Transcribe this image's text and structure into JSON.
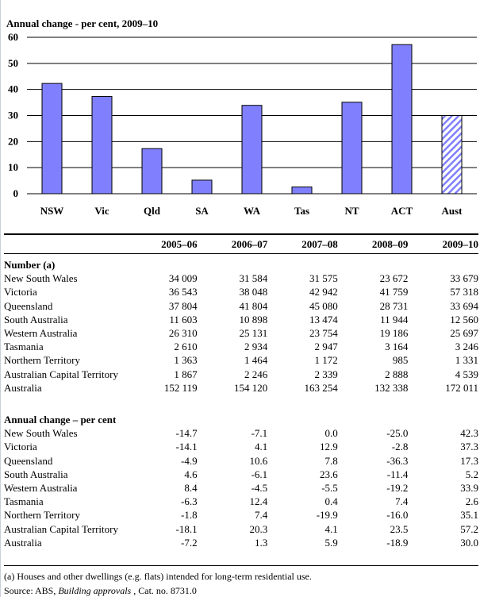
{
  "chart_data": {
    "type": "bar",
    "title": "Annual change - per cent, 2009–10",
    "categories": [
      "NSW",
      "Vic",
      "Qld",
      "SA",
      "WA",
      "Tas",
      "NT",
      "ACT",
      "Aust"
    ],
    "values": [
      42.3,
      37.3,
      17.3,
      5.2,
      33.9,
      2.6,
      35.1,
      57.2,
      30.0
    ],
    "ylim": [
      0,
      60
    ],
    "yticks": [
      "0",
      "10",
      "20",
      "30",
      "40",
      "50",
      "60"
    ],
    "grid": true,
    "colors": {
      "bar": "#8080ff",
      "highlight_pattern": "hatched",
      "outline": "#000000"
    },
    "highlighted": "Aust"
  },
  "table": {
    "columns": [
      "2005–06",
      "2006–07",
      "2007–08",
      "2008–09",
      "2009–10"
    ],
    "sections": [
      {
        "title": "Number (a)",
        "rows": [
          {
            "label": "New South Wales",
            "values": [
              "34 009",
              "31 584",
              "31 575",
              "23 672",
              "33 679"
            ]
          },
          {
            "label": "Victoria",
            "values": [
              "36 543",
              "38 048",
              "42 942",
              "41 759",
              "57 318"
            ]
          },
          {
            "label": "Queensland",
            "values": [
              "37 804",
              "41 804",
              "45 080",
              "28 731",
              "33 694"
            ]
          },
          {
            "label": "South Australia",
            "values": [
              "11 603",
              "10 898",
              "13 474",
              "11 944",
              "12 560"
            ]
          },
          {
            "label": "Western Australia",
            "values": [
              "26 310",
              "25 131",
              "23 754",
              "19 186",
              "25 697"
            ]
          },
          {
            "label": "Tasmania",
            "values": [
              "2 610",
              "2 934",
              "2 947",
              "3 164",
              "3 246"
            ]
          },
          {
            "label": "Northern Territory",
            "values": [
              "1 363",
              "1 464",
              "1 172",
              "985",
              "1 331"
            ]
          },
          {
            "label": "Australian Capital Territory",
            "values": [
              "1 867",
              "2 246",
              "2 339",
              "2 888",
              "4 539"
            ]
          },
          {
            "label": "Australia",
            "values": [
              "152 119",
              "154 120",
              "163 254",
              "132 338",
              "172 011"
            ]
          }
        ]
      },
      {
        "title": "Annual change – per cent",
        "rows": [
          {
            "label": "New South Wales",
            "values": [
              "-14.7",
              "-7.1",
              "0.0",
              "-25.0",
              "42.3"
            ]
          },
          {
            "label": "Victoria",
            "values": [
              "-14.1",
              "4.1",
              "12.9",
              "-2.8",
              "37.3"
            ]
          },
          {
            "label": "Queensland",
            "values": [
              "-4.9",
              "10.6",
              "7.8",
              "-36.3",
              "17.3"
            ]
          },
          {
            "label": "South Australia",
            "values": [
              "4.6",
              "-6.1",
              "23.6",
              "-11.4",
              "5.2"
            ]
          },
          {
            "label": "Western Australia",
            "values": [
              "8.4",
              "-4.5",
              "-5.5",
              "-19.2",
              "33.9"
            ]
          },
          {
            "label": "Tasmania",
            "values": [
              "-6.3",
              "12.4",
              "0.4",
              "7.4",
              "2.6"
            ]
          },
          {
            "label": "Northern Territory",
            "values": [
              "-1.8",
              "7.4",
              "-19.9",
              "-16.0",
              "35.1"
            ]
          },
          {
            "label": "Australian Capital Territory",
            "values": [
              "-18.1",
              "20.3",
              "4.1",
              "23.5",
              "57.2"
            ]
          },
          {
            "label": "Australia",
            "values": [
              "-7.2",
              "1.3",
              "5.9",
              "-18.9",
              "30.0"
            ]
          }
        ]
      }
    ]
  },
  "footnote": "(a) Houses and other dwellings (e.g. flats) intended for long-term residential use.",
  "source": {
    "prefix": "Source: ABS, ",
    "title": "Building approvals",
    "suffix": " , Cat. no. 8731.0"
  }
}
